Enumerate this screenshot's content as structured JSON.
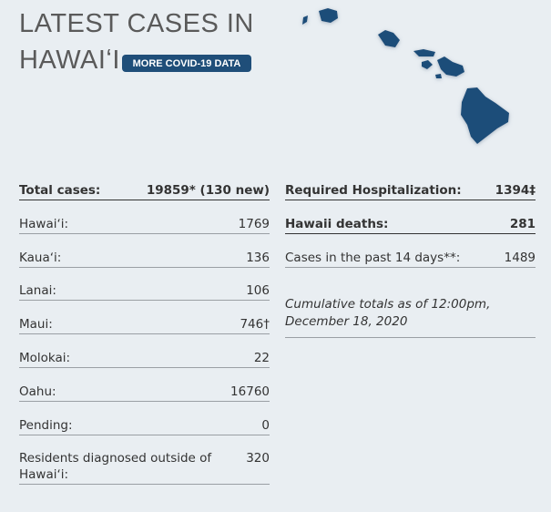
{
  "header": {
    "title_lines": [
      "LATEST CASES IN",
      "HAWAIʻI"
    ],
    "button": "MORE COVID-19 DATA"
  },
  "left_table": {
    "rows": [
      {
        "label": "Total cases:",
        "value": "19859* (130 new)",
        "bold": true
      },
      {
        "label": "Hawaiʻi:",
        "value": "1769"
      },
      {
        "label": "Kauaʻi:",
        "value": "136"
      },
      {
        "label": "Lanai:",
        "value": "106"
      },
      {
        "label": "Maui:",
        "value": "746†"
      },
      {
        "label": "Molokai:",
        "value": "22"
      },
      {
        "label": "Oahu:",
        "value": "16760"
      },
      {
        "label": "Pending:",
        "value": "0"
      },
      {
        "label": "Residents diagnosed outside of Hawaiʻi:",
        "value": "320"
      }
    ]
  },
  "right_table": {
    "rows": [
      {
        "label": "Required Hospitalization:",
        "value": "1394‡",
        "bold": true
      },
      {
        "label": "Hawaii deaths:",
        "value": "281",
        "bold": true
      },
      {
        "label": "Cases in the past 14 days**:",
        "value": "1489"
      }
    ],
    "note": "Cumulative totals as of 12:00pm, December 18, 2020"
  }
}
